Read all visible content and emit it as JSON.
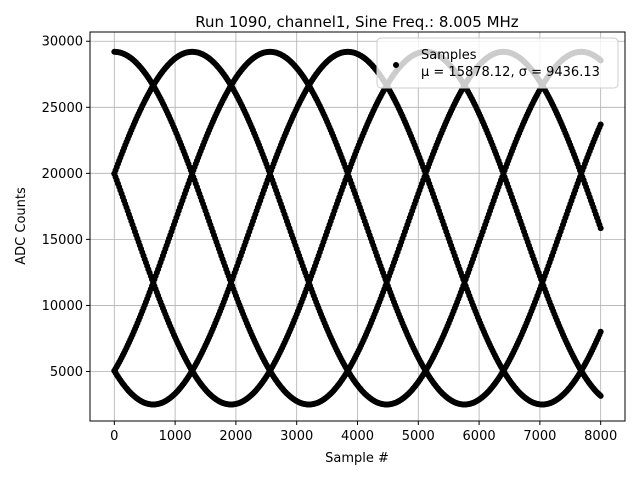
{
  "chart_data": {
    "type": "scatter",
    "title": "Run 1090, channel1, Sine Freq.: 8.005 MHz",
    "xlabel": "Sample #",
    "ylabel": "ADC Counts",
    "xlim": [
      -400,
      8400
    ],
    "ylim": [
      1250,
      30700
    ],
    "xticks": [
      0,
      1000,
      2000,
      3000,
      4000,
      5000,
      6000,
      7000,
      8000
    ],
    "yticks": [
      5000,
      10000,
      15000,
      20000,
      25000,
      30000
    ],
    "grid": true,
    "legend": {
      "placement": "top-right",
      "label": "Samples",
      "stats": "μ = 15878.12, σ = 9436.13"
    },
    "series": [
      {
        "name": "Samples",
        "color": "#000000",
        "model": {
          "mean": 15850,
          "amplitude": 13350,
          "phase_offsets_deg": [
            90,
            18,
            -54,
            -126,
            -198
          ],
          "period_samples": 6400,
          "x_range": [
            0,
            8000
          ],
          "sample_step": 20
        }
      }
    ]
  }
}
